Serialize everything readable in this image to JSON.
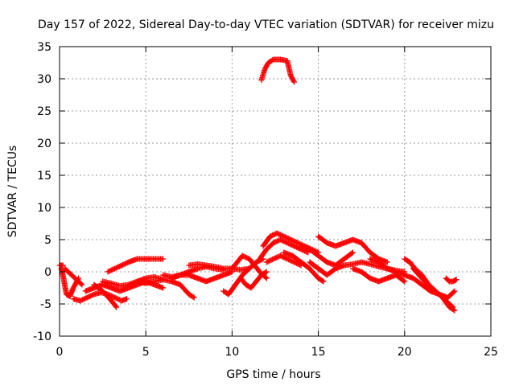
{
  "chart_data": {
    "type": "scatter",
    "title": "Day 157 of 2022, Sidereal Day-to-day VTEC variation (SDTVAR) for receiver mizu",
    "xlabel": "GPS time / hours",
    "ylabel": "SDTVAR / TECUs",
    "xlim": [
      0,
      25
    ],
    "ylim": [
      -10,
      35
    ],
    "xticks": [
      0,
      5,
      10,
      15,
      20,
      25
    ],
    "yticks": [
      -10,
      -5,
      0,
      5,
      10,
      15,
      20,
      25,
      30,
      35
    ],
    "grid": true,
    "marker": "+",
    "series": [
      {
        "name": "SDTVAR",
        "color": "#ff0000",
        "segments": [
          {
            "x": [
              0.0,
              0.1,
              0.2
            ],
            "y": [
              1.0,
              1.0,
              1.0
            ]
          },
          {
            "x": [
              0.1,
              0.2,
              0.3,
              0.4,
              0.6,
              0.8,
              1.0,
              1.1
            ],
            "y": [
              0.5,
              -0.5,
              -2.0,
              -3.5,
              -3.8,
              -2.5,
              -1.5,
              -1.0
            ]
          },
          {
            "x": [
              0.3,
              0.5,
              0.7,
              0.9,
              1.1,
              1.3
            ],
            "y": [
              0.5,
              0.0,
              -0.5,
              -1.0,
              -1.5,
              -2.0
            ]
          },
          {
            "x": [
              0.8,
              1.2,
              1.6,
              2.0,
              2.4,
              2.8,
              3.2,
              3.6,
              3.9
            ],
            "y": [
              -4.2,
              -4.5,
              -4.0,
              -3.5,
              -3.2,
              -3.5,
              -4.0,
              -4.5,
              -4.2
            ]
          },
          {
            "x": [
              1.5,
              2.0,
              2.5,
              3.0,
              3.5,
              4.0,
              4.5,
              5.0,
              5.5,
              6.0
            ],
            "y": [
              -3.0,
              -2.5,
              -2.0,
              -2.5,
              -3.0,
              -2.5,
              -2.0,
              -1.5,
              -2.0,
              -2.5
            ]
          },
          {
            "x": [
              2.0,
              2.5,
              3.0,
              3.3
            ],
            "y": [
              -2.0,
              -3.0,
              -4.5,
              -5.5
            ]
          },
          {
            "x": [
              2.5,
              3.0,
              3.5,
              4.0,
              4.5,
              5.0,
              5.5,
              6.0
            ],
            "y": [
              -1.5,
              -1.8,
              -2.2,
              -2.0,
              -1.5,
              -1.0,
              -0.8,
              -1.2
            ]
          },
          {
            "x": [
              2.8,
              3.2,
              3.6,
              4.0,
              4.5,
              5.0,
              5.5,
              6.0
            ],
            "y": [
              0.0,
              0.5,
              1.0,
              1.5,
              2.0,
              2.0,
              2.0,
              2.0
            ]
          },
          {
            "x": [
              4.5,
              5.0,
              5.5,
              6.0,
              6.5,
              7.0,
              7.5,
              7.8
            ],
            "y": [
              -1.5,
              -1.8,
              -1.5,
              -1.2,
              -1.5,
              -2.0,
              -3.5,
              -4.0
            ]
          },
          {
            "x": [
              6.0,
              6.5,
              7.0,
              7.5,
              8.0,
              8.5,
              9.0,
              9.5
            ],
            "y": [
              -0.5,
              -0.8,
              -0.5,
              0.0,
              0.5,
              0.8,
              0.5,
              0.3
            ]
          },
          {
            "x": [
              6.5,
              7.0,
              7.5,
              8.0,
              8.5,
              9.0,
              9.5,
              10.0
            ],
            "y": [
              -1.0,
              -0.5,
              -0.5,
              -1.0,
              -1.5,
              -1.0,
              -0.5,
              0.0
            ]
          },
          {
            "x": [
              7.5,
              8.0,
              8.5,
              9.0,
              9.5,
              10.0,
              10.5,
              11.0
            ],
            "y": [
              1.0,
              1.2,
              1.0,
              0.8,
              0.5,
              0.5,
              0.3,
              0.5
            ]
          },
          {
            "x": [
              9.5,
              9.8,
              10.2,
              10.6,
              11.0,
              11.4,
              11.8
            ],
            "y": [
              -3.0,
              -3.5,
              -2.0,
              -0.5,
              0.5,
              1.5,
              2.0
            ]
          },
          {
            "x": [
              10.0,
              10.3,
              10.6,
              11.0,
              11.3,
              11.6,
              12.0
            ],
            "y": [
              0.5,
              1.5,
              2.5,
              2.0,
              1.0,
              0.0,
              -1.0
            ]
          },
          {
            "x": [
              10.5,
              10.8,
              11.1,
              11.4,
              11.7,
              12.0
            ],
            "y": [
              -1.0,
              -2.0,
              -2.5,
              -1.5,
              -0.5,
              0.0
            ]
          },
          {
            "x": [
              11.7,
              11.9,
              12.1,
              12.4,
              12.8,
              13.2,
              13.4,
              13.6
            ],
            "y": [
              29.8,
              31.5,
              32.5,
              33.0,
              33.0,
              32.8,
              30.5,
              29.5
            ]
          },
          {
            "x": [
              11.8,
              12.2,
              12.6,
              13.0,
              13.4,
              13.8,
              14.2,
              14.6,
              15.0
            ],
            "y": [
              4.0,
              5.5,
              6.0,
              5.5,
              5.0,
              4.5,
              4.0,
              3.5,
              3.0
            ]
          },
          {
            "x": [
              11.6,
              12.0,
              12.4,
              12.8,
              13.2,
              13.6,
              14.0,
              14.4
            ],
            "y": [
              2.0,
              3.5,
              4.5,
              5.0,
              4.5,
              4.0,
              3.5,
              3.0
            ]
          },
          {
            "x": [
              12.0,
              12.4,
              12.8,
              13.2,
              13.6,
              14.0
            ],
            "y": [
              1.5,
              2.0,
              2.5,
              2.0,
              1.5,
              1.0
            ]
          },
          {
            "x": [
              13.0,
              13.5,
              14.0,
              14.5,
              15.0,
              15.3
            ],
            "y": [
              3.0,
              2.5,
              1.5,
              0.5,
              -1.0,
              -1.5
            ]
          },
          {
            "x": [
              14.0,
              14.5,
              15.0,
              15.5,
              16.0,
              16.5,
              17.0
            ],
            "y": [
              4.0,
              3.5,
              2.5,
              1.5,
              1.0,
              2.0,
              3.0
            ]
          },
          {
            "x": [
              14.5,
              15.0,
              15.5,
              16.0,
              16.5,
              17.0,
              17.5,
              18.0,
              18.5,
              19.0,
              19.5,
              20.0
            ],
            "y": [
              1.5,
              0.5,
              -0.5,
              0.5,
              1.0,
              1.2,
              1.5,
              1.2,
              0.8,
              0.5,
              0.2,
              0.0
            ]
          },
          {
            "x": [
              15.0,
              15.5,
              16.0,
              16.5,
              17.0,
              17.5,
              18.0,
              18.5,
              19.0
            ],
            "y": [
              5.5,
              4.5,
              4.0,
              4.5,
              5.0,
              4.5,
              3.0,
              2.0,
              1.5
            ]
          },
          {
            "x": [
              17.0,
              17.5,
              18.0,
              18.5,
              19.0,
              19.5,
              20.0
            ],
            "y": [
              0.5,
              0.0,
              -1.0,
              -1.5,
              -1.0,
              -0.5,
              -1.5
            ]
          },
          {
            "x": [
              18.0,
              18.5,
              19.0,
              19.5,
              20.0,
              20.5,
              21.0
            ],
            "y": [
              2.0,
              1.5,
              0.5,
              0.0,
              -0.5,
              -1.0,
              -2.0
            ]
          },
          {
            "x": [
              20.0,
              20.3,
              20.6,
              21.0,
              21.4,
              21.8,
              22.2,
              22.6,
              22.9
            ],
            "y": [
              2.0,
              1.5,
              0.5,
              -0.5,
              -2.0,
              -3.0,
              -4.0,
              -5.5,
              -6.0
            ]
          },
          {
            "x": [
              20.5,
              21.0,
              21.5,
              22.0,
              22.4,
              22.8
            ],
            "y": [
              0.5,
              -1.0,
              -2.5,
              -3.5,
              -4.5,
              -5.5
            ]
          },
          {
            "x": [
              21.0,
              21.5,
              22.0,
              22.5,
              22.9
            ],
            "y": [
              -2.0,
              -3.0,
              -3.5,
              -4.0,
              -3.0
            ]
          },
          {
            "x": [
              22.4,
              22.6,
              22.8,
              23.0
            ],
            "y": [
              -1.0,
              -1.5,
              -1.5,
              -1.2
            ]
          }
        ]
      }
    ]
  }
}
